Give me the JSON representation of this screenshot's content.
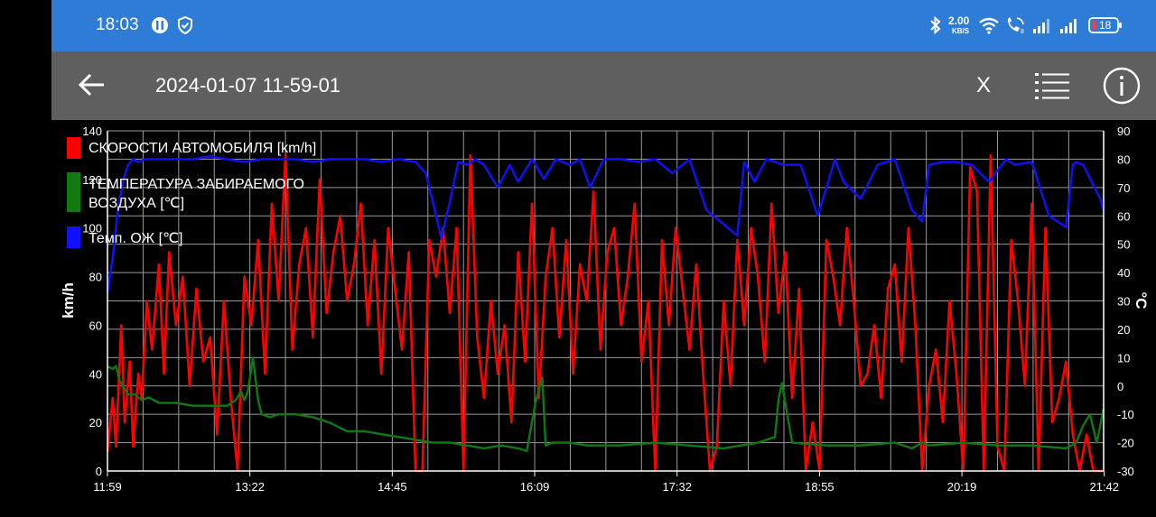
{
  "status_bar": {
    "time": "18:03",
    "network_speed": "2.00",
    "network_speed_unit": "KB/S",
    "battery": "18",
    "icons": [
      "pause-circle-icon",
      "shield-check-icon",
      "bluetooth-icon",
      "wifi-icon",
      "wifi-calling-icon",
      "signal-icon",
      "signal-icon",
      "battery-icon"
    ]
  },
  "app_bar": {
    "title": "2024-01-07 11-59-01",
    "close_label": "X",
    "icons": [
      "back-arrow-icon",
      "list-icon",
      "info-icon"
    ]
  },
  "colors": {
    "speed": "#ff0000",
    "intake_temp": "#107a10",
    "coolant": "#1010ff",
    "status_bar": "#2f7cd6",
    "app_bar": "#5f5f5f"
  },
  "chart_data": {
    "type": "line",
    "title": "",
    "xlabel": "",
    "ylabel": "km/h",
    "y2label": "°C",
    "x_ticks": [
      "11:59",
      "13:22",
      "14:45",
      "16:09",
      "17:32",
      "18:55",
      "20:19",
      "21:42"
    ],
    "x_range_minutes": [
      0,
      582
    ],
    "x_tick_step_minutes": 83.2,
    "ylim": [
      0,
      140
    ],
    "y_ticks": [
      0,
      20,
      40,
      60,
      80,
      100,
      120,
      140
    ],
    "y2lim": [
      -30,
      90
    ],
    "y2_ticks": [
      -30,
      -20,
      -10,
      0,
      10,
      20,
      30,
      40,
      50,
      60,
      70,
      80,
      90
    ],
    "grid": true,
    "legend_position": "top-left",
    "legend": [
      {
        "label": "СКОРОСТИ АВТОМОБИЛЯ [km/h]",
        "color": "#ff0000"
      },
      {
        "label": "ТЕМПЕРАТУРА ЗАБИРАЕМОГО ВОЗДУХА [℃]",
        "color": "#107a10"
      },
      {
        "label": "Темп. ОЖ [℃]",
        "color": "#1010ff"
      }
    ],
    "series": [
      {
        "name": "СКОРОСТИ АВТОМОБИЛЯ [km/h]",
        "axis": "left",
        "color": "#ff0000",
        "x": [
          0,
          3,
          5,
          8,
          10,
          13,
          15,
          18,
          20,
          23,
          26,
          30,
          33,
          36,
          40,
          44,
          48,
          52,
          56,
          60,
          64,
          68,
          72,
          76,
          80,
          84,
          88,
          92,
          96,
          100,
          104,
          108,
          112,
          116,
          120,
          124,
          128,
          132,
          136,
          140,
          144,
          148,
          152,
          156,
          160,
          164,
          168,
          172,
          176,
          180,
          184,
          188,
          192,
          196,
          200,
          204,
          208,
          212,
          216,
          220,
          224,
          228,
          232,
          236,
          240,
          244,
          248,
          252,
          256,
          260,
          264,
          268,
          272,
          276,
          280,
          284,
          288,
          292,
          296,
          300,
          304,
          308,
          312,
          316,
          320,
          324,
          328,
          332,
          336,
          340,
          344,
          348,
          352,
          356,
          360,
          364,
          368,
          372,
          376,
          380,
          384,
          388,
          392,
          396,
          400,
          404,
          408,
          412,
          416,
          420,
          424,
          428,
          432,
          436,
          440,
          444,
          448,
          452,
          456,
          460,
          464,
          468,
          472,
          476,
          480,
          484,
          488,
          492,
          496,
          500,
          504,
          508,
          512,
          516,
          520,
          524,
          528,
          532,
          536,
          540,
          544,
          548,
          552,
          556,
          560,
          564,
          568,
          572,
          576,
          580,
          582
        ],
        "y": [
          8,
          30,
          10,
          60,
          20,
          45,
          10,
          40,
          30,
          70,
          50,
          85,
          40,
          90,
          60,
          80,
          35,
          75,
          45,
          55,
          15,
          70,
          30,
          0,
          80,
          60,
          95,
          40,
          110,
          70,
          130,
          50,
          85,
          100,
          55,
          120,
          65,
          90,
          105,
          70,
          85,
          110,
          60,
          95,
          40,
          100,
          75,
          50,
          90,
          0,
          0,
          95,
          80,
          100,
          65,
          100,
          0,
          130,
          55,
          30,
          70,
          40,
          60,
          20,
          90,
          45,
          110,
          30,
          80,
          100,
          55,
          95,
          40,
          85,
          70,
          115,
          50,
          90,
          100,
          60,
          80,
          110,
          45,
          70,
          0,
          95,
          60,
          100,
          75,
          50,
          85,
          40,
          0,
          10,
          70,
          35,
          95,
          60,
          100,
          80,
          45,
          110,
          65,
          90,
          30,
          75,
          0,
          20,
          0,
          95,
          80,
          60,
          100,
          70,
          35,
          40,
          60,
          30,
          75,
          85,
          45,
          100,
          60,
          0,
          35,
          50,
          20,
          70,
          40,
          0,
          125,
          115,
          0,
          130,
          10,
          0,
          95,
          70,
          35,
          110,
          0,
          100,
          20,
          30,
          45,
          15,
          0,
          15,
          0,
          0,
          0
        ]
      },
      {
        "name": "ТЕМПЕРАТУРА ЗАБИРАЕМОГО ВОЗДУХА [℃]",
        "axis": "right",
        "color": "#107a10",
        "x": [
          0,
          3,
          5,
          7,
          9,
          12,
          16,
          20,
          24,
          30,
          40,
          50,
          60,
          70,
          75,
          78,
          80,
          82,
          85,
          88,
          90,
          95,
          100,
          110,
          120,
          130,
          140,
          150,
          160,
          170,
          180,
          190,
          200,
          210,
          220,
          230,
          240,
          245,
          250,
          254,
          256,
          260,
          270,
          280,
          300,
          320,
          340,
          360,
          380,
          390,
          392,
          394,
          400,
          420,
          440,
          460,
          470,
          476,
          480,
          500,
          520,
          540,
          560,
          566,
          570,
          574,
          578,
          582
        ],
        "y": [
          7,
          6,
          7,
          2,
          0,
          -3,
          -3,
          -5,
          -4,
          -6,
          -6,
          -7,
          -7,
          -7,
          -5,
          -2,
          -5,
          -2,
          10,
          -5,
          -10,
          -11,
          -10,
          -10,
          -11,
          -13,
          -16,
          -16,
          -17,
          -18,
          -19,
          -20,
          -20,
          -21,
          -22,
          -21,
          -22,
          -23,
          -6,
          3,
          -21,
          -20,
          -20,
          -21,
          -21,
          -20,
          -21,
          -22,
          -20,
          -18,
          -5,
          1,
          -20,
          -21,
          -21,
          -20,
          -22,
          -20,
          -21,
          -20,
          -21,
          -21,
          -22,
          -20,
          -14,
          -10,
          -20,
          -8
        ]
      },
      {
        "name": "Темп. ОЖ [℃]",
        "axis": "right",
        "color": "#1010ff",
        "x": [
          0,
          3,
          6,
          9,
          12,
          15,
          18,
          22,
          30,
          40,
          50,
          60,
          70,
          80,
          90,
          100,
          110,
          120,
          130,
          140,
          150,
          160,
          170,
          180,
          186,
          188,
          192,
          195,
          200,
          205,
          210,
          215,
          220,
          228,
          235,
          240,
          248,
          255,
          262,
          270,
          276,
          282,
          290,
          300,
          310,
          320,
          330,
          340,
          350,
          360,
          368,
          372,
          378,
          385,
          395,
          405,
          415,
          425,
          430,
          440,
          450,
          460,
          470,
          476,
          480,
          488,
          495,
          505,
          515,
          525,
          530,
          540,
          550,
          560,
          564,
          566,
          570,
          575,
          580,
          582
        ],
        "y": [
          33,
          45,
          62,
          72,
          78,
          80,
          79,
          80,
          80,
          80,
          80,
          81,
          80,
          79,
          80,
          80,
          80,
          79,
          80,
          80,
          80,
          79,
          80,
          79,
          75,
          70,
          60,
          52,
          65,
          79,
          78,
          80,
          78,
          70,
          78,
          72,
          80,
          73,
          80,
          78,
          80,
          70,
          80,
          80,
          79,
          80,
          75,
          80,
          62,
          57,
          53,
          79,
          72,
          80,
          78,
          78,
          60,
          80,
          72,
          66,
          78,
          80,
          62,
          58,
          78,
          79,
          79,
          78,
          72,
          80,
          78,
          79,
          60,
          56,
          78,
          79,
          78,
          72,
          66,
          62
        ]
      }
    ]
  }
}
